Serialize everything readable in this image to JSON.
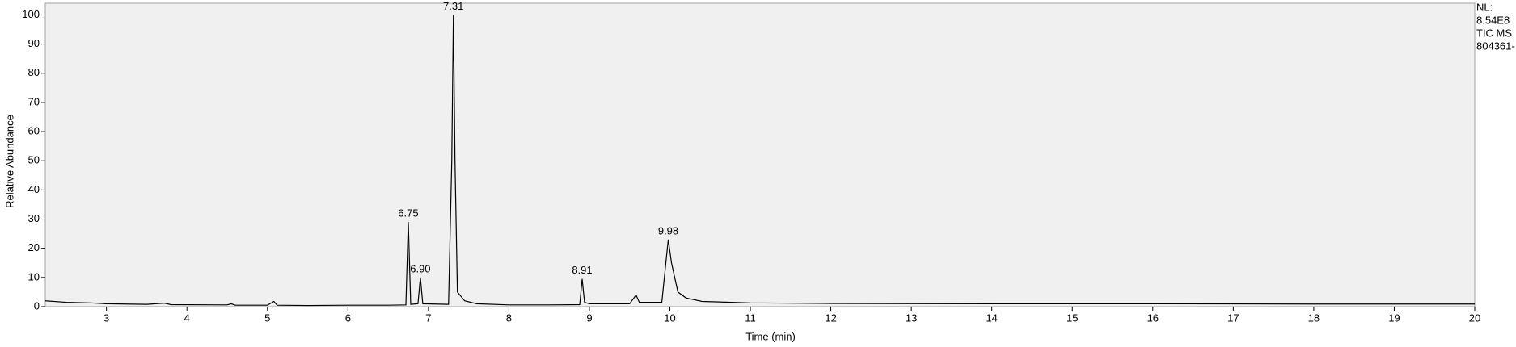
{
  "chart_data": {
    "type": "line",
    "x_label": "Time (min)",
    "y_label": "Relative Abundance",
    "x": [
      2.24,
      2.5,
      2.8,
      3.0,
      3.5,
      3.72,
      3.8,
      4.5,
      4.55,
      4.6,
      5.0,
      5.08,
      5.12,
      5.5,
      6.0,
      6.5,
      6.72,
      6.75,
      6.78,
      6.87,
      6.9,
      6.93,
      7.25,
      7.29,
      7.31,
      7.33,
      7.36,
      7.45,
      7.6,
      8.0,
      8.5,
      8.88,
      8.91,
      8.94,
      9.0,
      9.5,
      9.58,
      9.62,
      9.9,
      9.95,
      9.98,
      10.02,
      10.1,
      10.2,
      10.4,
      11,
      12,
      14,
      16,
      18,
      20
    ],
    "values": [
      2,
      1.5,
      1.3,
      1.0,
      0.8,
      1.2,
      0.7,
      0.6,
      1.0,
      0.5,
      0.5,
      1.8,
      0.5,
      0.4,
      0.5,
      0.5,
      0.6,
      29,
      0.8,
      1,
      10,
      1,
      0.8,
      50,
      100,
      50,
      5,
      2,
      1,
      0.6,
      0.6,
      0.7,
      9.5,
      1.5,
      1,
      1,
      4,
      1.5,
      1.5,
      15,
      23,
      15,
      5,
      3,
      1.8,
      1.3,
      1.1,
      1,
      1,
      0.9,
      0.9
    ],
    "color": "#000000",
    "xlim": [
      2.24,
      20
    ],
    "ylim": [
      0,
      104
    ],
    "xticks": [
      3,
      4,
      5,
      6,
      7,
      8,
      9,
      10,
      11,
      12,
      13,
      14,
      15,
      16,
      17,
      18,
      19,
      20
    ],
    "yticks": [
      0,
      10,
      20,
      30,
      40,
      50,
      60,
      70,
      80,
      90,
      100
    ],
    "annotations": [
      {
        "text": "6.75",
        "x": 6.75,
        "y": 29
      },
      {
        "text": "6.90",
        "x": 6.9,
        "y": 10
      },
      {
        "text": "7.31",
        "x": 7.31,
        "y": 100
      },
      {
        "text": "8.91",
        "x": 8.91,
        "y": 9.5
      },
      {
        "text": "9.98",
        "x": 9.98,
        "y": 23
      }
    ],
    "info_lines": [
      "NL:",
      "8.54E8",
      "TIC  MS",
      "804361-"
    ]
  }
}
